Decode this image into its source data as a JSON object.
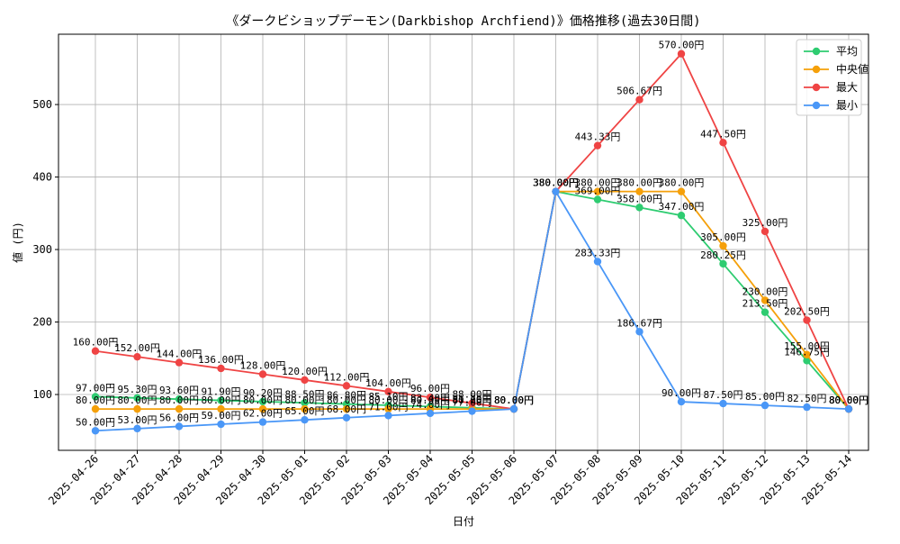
{
  "chart_data": {
    "type": "line",
    "title": "《ダークビショップデーモン(Darkbishop Archfiend)》価格推移(過去30日間)",
    "xlabel": "日付",
    "ylabel": "値 (円)",
    "ylim": [
      23,
      597
    ],
    "yticks": [
      100,
      200,
      300,
      400,
      500
    ],
    "grid": true,
    "legend_position": "top-right",
    "value_suffix": "円",
    "categories": [
      "2025-04-26",
      "2025-04-27",
      "2025-04-28",
      "2025-04-29",
      "2025-04-30",
      "2025-05-01",
      "2025-05-02",
      "2025-05-03",
      "2025-05-04",
      "2025-05-05",
      "2025-05-06",
      "2025-05-07",
      "2025-05-08",
      "2025-05-09",
      "2025-05-10",
      "2025-05-11",
      "2025-05-12",
      "2025-05-13",
      "2025-05-14"
    ],
    "series": [
      {
        "name": "平均",
        "color": "#2ecc71",
        "values": [
          97.0,
          95.3,
          93.6,
          91.9,
          90.2,
          88.5,
          86.8,
          85.1,
          83.4,
          81.7,
          80.0,
          380.0,
          369.0,
          358.0,
          347.0,
          280.25,
          213.5,
          146.75,
          80.0
        ]
      },
      {
        "name": "中央値",
        "color": "#f5a00a",
        "values": [
          80.0,
          80.0,
          80.0,
          80.0,
          80.0,
          80.0,
          80.0,
          80.0,
          80.0,
          80.0,
          80.0,
          380.0,
          380.0,
          380.0,
          380.0,
          305.0,
          230.0,
          155.0,
          80.0
        ]
      },
      {
        "name": "最大",
        "color": "#ef4444",
        "values": [
          160.0,
          152.0,
          144.0,
          136.0,
          128.0,
          120.0,
          112.0,
          104.0,
          96.0,
          88.0,
          80.0,
          380.0,
          443.33,
          506.67,
          570.0,
          447.5,
          325.0,
          202.5,
          80.0
        ]
      },
      {
        "name": "最小",
        "color": "#4a97f7",
        "values": [
          50.0,
          53.0,
          56.0,
          59.0,
          62.0,
          65.0,
          68.0,
          71.0,
          74.0,
          77.0,
          80.0,
          380.0,
          283.33,
          186.67,
          90.0,
          87.5,
          85.0,
          82.5,
          80.0
        ]
      }
    ]
  }
}
